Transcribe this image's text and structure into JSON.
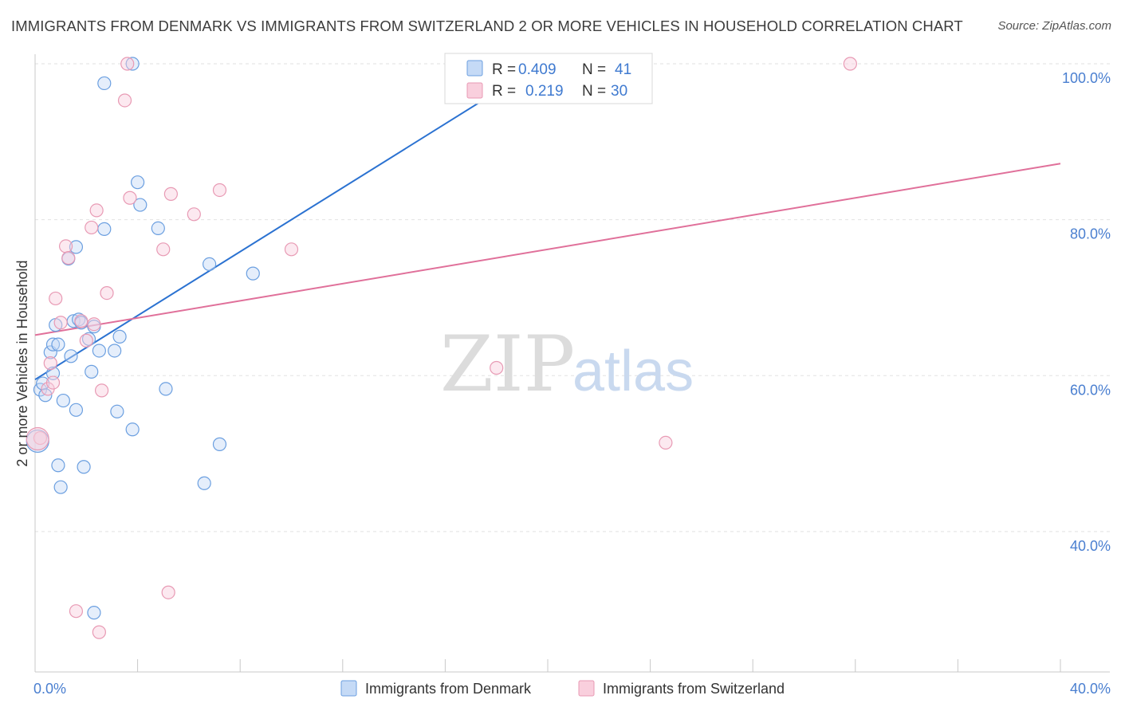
{
  "title": "IMMIGRANTS FROM DENMARK VS IMMIGRANTS FROM SWITZERLAND 2 OR MORE VEHICLES IN HOUSEHOLD CORRELATION CHART",
  "source": "Source: ZipAtlas.com",
  "watermark": {
    "part1": "ZIP",
    "part2": "atlas"
  },
  "chart_data": {
    "type": "scatter",
    "ylabel": "2 or more Vehicles in Household",
    "xlim": [
      0,
      40
    ],
    "ylim": [
      22,
      100
    ],
    "x_tick_labels": [
      {
        "value": 0,
        "label": "0.0%"
      },
      {
        "value": 40,
        "label": "40.0%"
      }
    ],
    "y_tick_labels": [
      {
        "value": 40,
        "label": "40.0%"
      },
      {
        "value": 60,
        "label": "60.0%"
      },
      {
        "value": 80,
        "label": "80.0%"
      },
      {
        "value": 100,
        "label": "100.0%"
      }
    ],
    "grid": true,
    "legend_position": "top-center",
    "series": [
      {
        "name": "Immigrants from Denmark",
        "color": "#6b9fe0",
        "fill": "#c5daf6",
        "line_color": "#2b72d1",
        "R": "0.409",
        "N": "41",
        "R_label": "R =",
        "N_label": "N =",
        "trend": {
          "x0": 0,
          "y0": 59.5,
          "x1": 20.0,
          "y1": 100.5
        },
        "points": [
          [
            0.2,
            58.2
          ],
          [
            0.3,
            59.0
          ],
          [
            0.4,
            57.5
          ],
          [
            0.6,
            63.0
          ],
          [
            0.7,
            64.0
          ],
          [
            0.8,
            66.5
          ],
          [
            0.9,
            64.0
          ],
          [
            0.7,
            60.3
          ],
          [
            0.9,
            48.5
          ],
          [
            1.0,
            45.7
          ],
          [
            1.1,
            56.8
          ],
          [
            1.3,
            75.0
          ],
          [
            1.4,
            62.5
          ],
          [
            1.5,
            67.0
          ],
          [
            1.6,
            55.6
          ],
          [
            1.6,
            76.5
          ],
          [
            1.7,
            67.2
          ],
          [
            1.8,
            66.8
          ],
          [
            1.9,
            48.3
          ],
          [
            2.1,
            64.7
          ],
          [
            2.2,
            60.5
          ],
          [
            2.3,
            66.3
          ],
          [
            2.5,
            63.2
          ],
          [
            2.7,
            78.8
          ],
          [
            2.7,
            97.5
          ],
          [
            3.1,
            63.2
          ],
          [
            3.2,
            55.4
          ],
          [
            3.3,
            65.0
          ],
          [
            3.8,
            53.1
          ],
          [
            3.8,
            100.0
          ],
          [
            4.0,
            84.8
          ],
          [
            4.1,
            81.9
          ],
          [
            4.8,
            78.9
          ],
          [
            5.1,
            58.3
          ],
          [
            6.6,
            46.2
          ],
          [
            6.8,
            74.3
          ],
          [
            7.2,
            51.2
          ],
          [
            8.5,
            73.1
          ],
          [
            2.3,
            29.6
          ],
          [
            18.7,
            100.0
          ],
          [
            0.1,
            51.6
          ]
        ]
      },
      {
        "name": "Immigrants from Switzerland",
        "color": "#e89ab4",
        "fill": "#f9cfdd",
        "line_color": "#e0709a",
        "R": "0.219",
        "N": "30",
        "R_label": "R =",
        "N_label": "N =",
        "trend": {
          "x0": 0,
          "y0": 65.2,
          "x1": 40.0,
          "y1": 87.2
        },
        "points": [
          [
            0.2,
            52.0
          ],
          [
            0.5,
            58.3
          ],
          [
            0.6,
            61.6
          ],
          [
            0.7,
            59.1
          ],
          [
            0.8,
            69.9
          ],
          [
            1.0,
            66.8
          ],
          [
            1.2,
            76.6
          ],
          [
            1.3,
            75.1
          ],
          [
            1.6,
            29.8
          ],
          [
            1.8,
            67.0
          ],
          [
            2.0,
            64.5
          ],
          [
            2.2,
            79.0
          ],
          [
            2.3,
            66.6
          ],
          [
            2.4,
            81.2
          ],
          [
            2.5,
            27.1
          ],
          [
            2.6,
            58.1
          ],
          [
            2.8,
            70.6
          ],
          [
            3.5,
            95.3
          ],
          [
            3.6,
            100.0
          ],
          [
            3.7,
            82.8
          ],
          [
            5.0,
            76.2
          ],
          [
            5.2,
            32.2
          ],
          [
            5.3,
            83.3
          ],
          [
            6.2,
            80.7
          ],
          [
            7.2,
            83.8
          ],
          [
            10.0,
            76.2
          ],
          [
            18.0,
            61.0
          ],
          [
            24.6,
            51.4
          ],
          [
            31.8,
            100.0
          ],
          [
            0.1,
            51.9
          ]
        ]
      }
    ]
  }
}
